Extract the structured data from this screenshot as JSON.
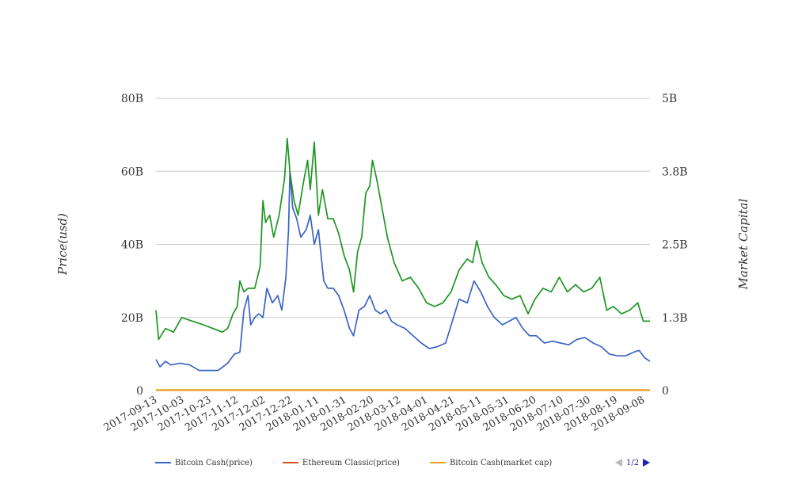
{
  "chart_data": {
    "type": "line",
    "ylabel_left": "Price(usd)",
    "ylabel_right": "Market Capital",
    "y_left_ticks": [
      "0",
      "20B",
      "40B",
      "60B",
      "80B"
    ],
    "y_right_ticks": [
      "0",
      "1.3B",
      "2.5B",
      "3.8B",
      "5B"
    ],
    "y_left_range": [
      0,
      80
    ],
    "y_right_range": [
      0,
      5
    ],
    "grid": true,
    "x_tick_labels": [
      "2017-09-13",
      "2017-10-03",
      "2017-10-23",
      "2017-11-12",
      "2017-12-02",
      "2017-12-22",
      "2018-01-11",
      "2018-01-31",
      "2018-02-20",
      "2018-03-12",
      "2018-04-01",
      "2018-04-21",
      "2018-05-11",
      "2018-05-31",
      "2018-06-20",
      "2018-07-10",
      "2018-07-30",
      "2018-08-19",
      "2018-09-08"
    ],
    "x_range": [
      "2017-09-13",
      "2018-09-13"
    ],
    "legend_position": "bottom-left",
    "series": [
      {
        "name": "Bitcoin Cash(price)",
        "axis": "left",
        "color": "#3b63c4",
        "points": [
          [
            "2017-09-13",
            8.5
          ],
          [
            "2017-09-16",
            6.5
          ],
          [
            "2017-09-20",
            8.0
          ],
          [
            "2017-09-24",
            7.0
          ],
          [
            "2017-10-01",
            7.5
          ],
          [
            "2017-10-08",
            7.0
          ],
          [
            "2017-10-15",
            5.5
          ],
          [
            "2017-10-22",
            5.5
          ],
          [
            "2017-10-29",
            5.5
          ],
          [
            "2017-11-05",
            7.5
          ],
          [
            "2017-11-10",
            10.0
          ],
          [
            "2017-11-14",
            10.5
          ],
          [
            "2017-11-17",
            22.0
          ],
          [
            "2017-11-20",
            26.0
          ],
          [
            "2017-11-22",
            18.0
          ],
          [
            "2017-11-25",
            20.0
          ],
          [
            "2017-11-28",
            21.0
          ],
          [
            "2017-12-01",
            20.0
          ],
          [
            "2017-12-04",
            28.0
          ],
          [
            "2017-12-08",
            24.0
          ],
          [
            "2017-12-12",
            26.0
          ],
          [
            "2017-12-15",
            22.0
          ],
          [
            "2017-12-18",
            31.0
          ],
          [
            "2017-12-20",
            44.0
          ],
          [
            "2017-12-21",
            60.0
          ],
          [
            "2017-12-23",
            50.0
          ],
          [
            "2017-12-26",
            47.0
          ],
          [
            "2017-12-29",
            42.0
          ],
          [
            "2018-01-02",
            44.0
          ],
          [
            "2018-01-05",
            48.0
          ],
          [
            "2018-01-08",
            40.0
          ],
          [
            "2018-01-11",
            44.0
          ],
          [
            "2018-01-15",
            30.0
          ],
          [
            "2018-01-18",
            28.0
          ],
          [
            "2018-01-22",
            28.0
          ],
          [
            "2018-01-26",
            26.0
          ],
          [
            "2018-01-30",
            22.0
          ],
          [
            "2018-02-03",
            17.0
          ],
          [
            "2018-02-06",
            15.0
          ],
          [
            "2018-02-10",
            22.0
          ],
          [
            "2018-02-14",
            23.0
          ],
          [
            "2018-02-18",
            26.0
          ],
          [
            "2018-02-22",
            22.0
          ],
          [
            "2018-02-26",
            21.0
          ],
          [
            "2018-03-02",
            22.0
          ],
          [
            "2018-03-06",
            19.0
          ],
          [
            "2018-03-10",
            18.0
          ],
          [
            "2018-03-16",
            17.0
          ],
          [
            "2018-03-22",
            15.0
          ],
          [
            "2018-03-28",
            13.0
          ],
          [
            "2018-04-03",
            11.5
          ],
          [
            "2018-04-09",
            12.0
          ],
          [
            "2018-04-15",
            13.0
          ],
          [
            "2018-04-20",
            19.0
          ],
          [
            "2018-04-25",
            25.0
          ],
          [
            "2018-05-01",
            24.0
          ],
          [
            "2018-05-06",
            30.0
          ],
          [
            "2018-05-11",
            27.0
          ],
          [
            "2018-05-16",
            23.0
          ],
          [
            "2018-05-21",
            20.0
          ],
          [
            "2018-05-27",
            18.0
          ],
          [
            "2018-06-01",
            19.0
          ],
          [
            "2018-06-06",
            20.0
          ],
          [
            "2018-06-11",
            17.0
          ],
          [
            "2018-06-16",
            15.0
          ],
          [
            "2018-06-21",
            15.0
          ],
          [
            "2018-06-27",
            13.0
          ],
          [
            "2018-07-03",
            13.5
          ],
          [
            "2018-07-09",
            13.0
          ],
          [
            "2018-07-15",
            12.5
          ],
          [
            "2018-07-21",
            14.0
          ],
          [
            "2018-07-27",
            14.5
          ],
          [
            "2018-08-02",
            13.0
          ],
          [
            "2018-08-08",
            12.0
          ],
          [
            "2018-08-14",
            10.0
          ],
          [
            "2018-08-20",
            9.5
          ],
          [
            "2018-08-26",
            9.5
          ],
          [
            "2018-09-01",
            10.5
          ],
          [
            "2018-09-05",
            11.0
          ],
          [
            "2018-09-09",
            9.0
          ],
          [
            "2018-09-13",
            8.0
          ]
        ]
      },
      {
        "name": "Ethereum Classic(price)",
        "axis": "left",
        "color": "#d2541c",
        "points": [
          [
            "2017-09-13",
            0.1
          ],
          [
            "2018-09-13",
            0.1
          ]
        ]
      },
      {
        "name": "Bitcoin Cash(market cap)",
        "axis": "right",
        "color": "#eba31c",
        "points": [
          [
            "2017-09-13",
            0.01
          ],
          [
            "2018-09-13",
            0.01
          ]
        ]
      },
      {
        "name": "",
        "axis": "left",
        "color": "#1e9622",
        "points": [
          [
            "2017-09-13",
            22.0
          ],
          [
            "2017-09-15",
            14.0
          ],
          [
            "2017-09-20",
            17.0
          ],
          [
            "2017-09-26",
            16.0
          ],
          [
            "2017-10-02",
            20.0
          ],
          [
            "2017-10-10",
            19.0
          ],
          [
            "2017-10-18",
            18.0
          ],
          [
            "2017-10-25",
            17.0
          ],
          [
            "2017-11-01",
            16.0
          ],
          [
            "2017-11-05",
            17.0
          ],
          [
            "2017-11-09",
            21.0
          ],
          [
            "2017-11-12",
            23.0
          ],
          [
            "2017-11-14",
            30.0
          ],
          [
            "2017-11-17",
            27.0
          ],
          [
            "2017-11-20",
            28.0
          ],
          [
            "2017-11-25",
            28.0
          ],
          [
            "2017-11-29",
            34.0
          ],
          [
            "2017-12-01",
            52.0
          ],
          [
            "2017-12-03",
            46.0
          ],
          [
            "2017-12-06",
            48.0
          ],
          [
            "2017-12-09",
            42.0
          ],
          [
            "2017-12-13",
            48.0
          ],
          [
            "2017-12-17",
            58.0
          ],
          [
            "2017-12-19",
            69.0
          ],
          [
            "2017-12-21",
            60.0
          ],
          [
            "2017-12-24",
            52.0
          ],
          [
            "2017-12-27",
            48.0
          ],
          [
            "2017-12-31",
            57.0
          ],
          [
            "2018-01-03",
            63.0
          ],
          [
            "2018-01-05",
            55.0
          ],
          [
            "2018-01-08",
            68.0
          ],
          [
            "2018-01-11",
            48.0
          ],
          [
            "2018-01-14",
            55.0
          ],
          [
            "2018-01-18",
            47.0
          ],
          [
            "2018-01-22",
            47.0
          ],
          [
            "2018-01-26",
            43.0
          ],
          [
            "2018-01-30",
            37.0
          ],
          [
            "2018-02-03",
            33.0
          ],
          [
            "2018-02-06",
            27.0
          ],
          [
            "2018-02-09",
            38.0
          ],
          [
            "2018-02-12",
            42.0
          ],
          [
            "2018-02-15",
            54.0
          ],
          [
            "2018-02-18",
            56.0
          ],
          [
            "2018-02-20",
            63.0
          ],
          [
            "2018-02-23",
            58.0
          ],
          [
            "2018-02-27",
            50.0
          ],
          [
            "2018-03-03",
            42.0
          ],
          [
            "2018-03-08",
            35.0
          ],
          [
            "2018-03-14",
            30.0
          ],
          [
            "2018-03-20",
            31.0
          ],
          [
            "2018-03-26",
            28.0
          ],
          [
            "2018-04-01",
            24.0
          ],
          [
            "2018-04-07",
            23.0
          ],
          [
            "2018-04-13",
            24.0
          ],
          [
            "2018-04-19",
            27.0
          ],
          [
            "2018-04-25",
            33.0
          ],
          [
            "2018-05-01",
            36.0
          ],
          [
            "2018-05-05",
            35.0
          ],
          [
            "2018-05-08",
            41.0
          ],
          [
            "2018-05-12",
            35.0
          ],
          [
            "2018-05-17",
            31.0
          ],
          [
            "2018-05-22",
            29.0
          ],
          [
            "2018-05-28",
            26.0
          ],
          [
            "2018-06-03",
            25.0
          ],
          [
            "2018-06-09",
            26.0
          ],
          [
            "2018-06-15",
            21.0
          ],
          [
            "2018-06-20",
            25.0
          ],
          [
            "2018-06-26",
            28.0
          ],
          [
            "2018-07-02",
            27.0
          ],
          [
            "2018-07-08",
            31.0
          ],
          [
            "2018-07-14",
            27.0
          ],
          [
            "2018-07-20",
            29.0
          ],
          [
            "2018-07-26",
            27.0
          ],
          [
            "2018-08-01",
            28.0
          ],
          [
            "2018-08-07",
            31.0
          ],
          [
            "2018-08-12",
            22.0
          ],
          [
            "2018-08-17",
            23.0
          ],
          [
            "2018-08-23",
            21.0
          ],
          [
            "2018-08-29",
            22.0
          ],
          [
            "2018-09-04",
            24.0
          ],
          [
            "2018-09-08",
            19.0
          ],
          [
            "2018-09-13",
            19.0
          ]
        ]
      }
    ]
  },
  "legend": {
    "items": [
      {
        "label": "Bitcoin Cash(price)",
        "color": "#3b63c4"
      },
      {
        "label": "Ethereum Classic(price)",
        "color": "#d2541c"
      },
      {
        "label": "Bitcoin Cash(market cap)",
        "color": "#eba31c"
      }
    ],
    "pager": "1/2"
  }
}
